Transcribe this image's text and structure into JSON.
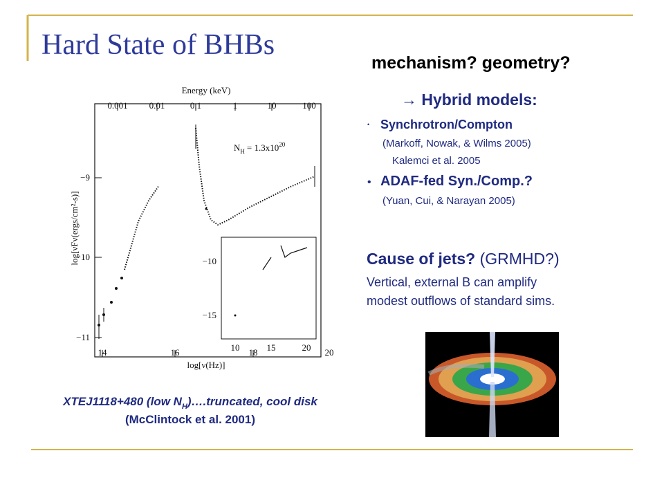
{
  "header": {
    "title": "Hard State of BHBs",
    "subtitle": "mechanism?  geometry?"
  },
  "right": {
    "hybrid_heading": "→ Hybrid models:",
    "items": [
      {
        "bullet": "Synchrotron/Compton",
        "refs": [
          "(Markoff, Nowak, & Wilms 2005)",
          "Kalemci et al. 2005"
        ]
      },
      {
        "bullet": "ADAF-fed Syn./Comp.?",
        "refs": [
          "(Yuan, Cui, & Narayan 2005)"
        ]
      }
    ],
    "jets_heading": "Cause of jets?",
    "jets_aside": "(GRMHD?)",
    "jets_lines": [
      "Vertical, external B can amplify",
      "modest outflows of standard sims."
    ]
  },
  "figure": {
    "top_axis_label": "Energy (keV)",
    "top_ticks": [
      "0.001",
      "0.01",
      "0.1",
      "1",
      "10",
      "100"
    ],
    "bottom_axis_label": "log[ν(Hz)]",
    "bottom_ticks": [
      "14",
      "16",
      "18",
      "20"
    ],
    "left_axis_label": "log[νFν(ergs/cm²-s)]",
    "left_ticks": [
      "−9",
      "−10",
      "−11"
    ],
    "nh_label": "N",
    "nh_sub": "H",
    "nh_value": "= 1.3x10",
    "nh_exp": "20",
    "inset_left_ticks": [
      "−10",
      "−15"
    ],
    "inset_bottom_ticks": [
      "10",
      "15",
      "20"
    ]
  },
  "caption": {
    "line1_a": "XTEJ1118+480 (low N",
    "line1_sub": "H",
    "line1_b": ")….truncated, cool disk",
    "line2": "(McClintock et al. 2001)"
  }
}
